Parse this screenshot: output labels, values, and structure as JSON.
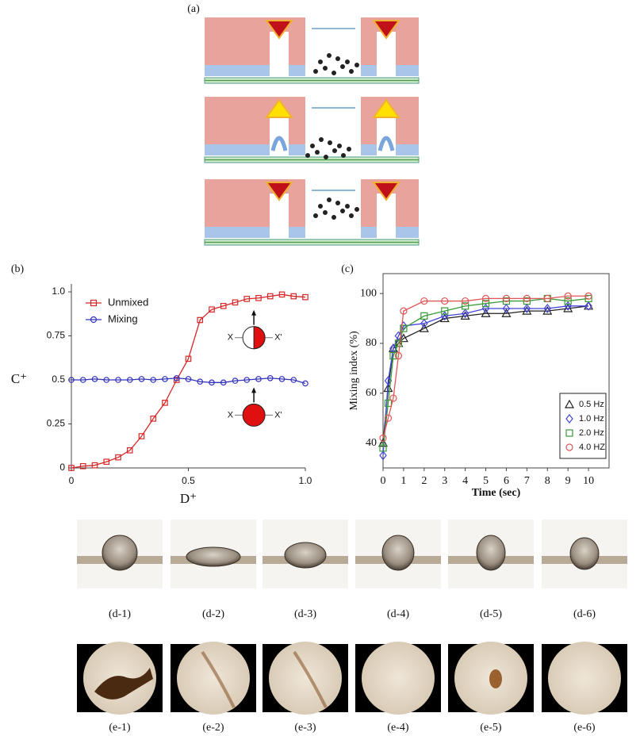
{
  "panel_labels": {
    "a": "(a)",
    "b": "(b)",
    "c": "(c)"
  },
  "chart_data": [
    {
      "type": "line",
      "x_label": "D⁺",
      "y_label": "C⁺",
      "x": [
        0,
        0.05,
        0.1,
        0.15,
        0.2,
        0.25,
        0.3,
        0.35,
        0.4,
        0.45,
        0.5,
        0.55,
        0.6,
        0.65,
        0.7,
        0.75,
        0.8,
        0.85,
        0.9,
        0.95,
        1
      ],
      "series": [
        {
          "name": "Unmixed",
          "color": "#d62728",
          "marker": "square",
          "values": [
            0,
            0.01,
            0.015,
            0.035,
            0.06,
            0.1,
            0.18,
            0.28,
            0.37,
            0.5,
            0.62,
            0.84,
            0.9,
            0.92,
            0.94,
            0.96,
            0.965,
            0.975,
            0.985,
            0.975,
            0.97
          ]
        },
        {
          "name": "Mixing",
          "color": "#3333bb",
          "marker": "circle",
          "values": [
            0.5,
            0.5,
            0.505,
            0.5,
            0.5,
            0.5,
            0.505,
            0.5,
            0.505,
            0.51,
            0.505,
            0.49,
            0.485,
            0.485,
            0.495,
            0.5,
            0.505,
            0.51,
            0.505,
            0.5,
            0.48
          ]
        }
      ],
      "xlim": [
        0,
        1
      ],
      "ylim": [
        0,
        1
      ],
      "xticks": [
        0,
        0.5,
        {
          "value": 1,
          "label": "1.0"
        }
      ],
      "yticks": [
        0,
        0.25,
        0.5,
        0.75,
        {
          "value": 1,
          "label": "1.0"
        }
      ],
      "legend": "upper left",
      "insets": [
        {
          "left": "X",
          "right": "X'"
        },
        {
          "left": "X",
          "right": "X'"
        }
      ]
    },
    {
      "type": "line",
      "x_label": "Time (sec)",
      "y_label": "Mixing index (%)",
      "x": [
        0,
        0.25,
        0.5,
        0.75,
        1,
        2,
        3,
        4,
        5,
        6,
        7,
        8,
        9,
        10
      ],
      "series": [
        {
          "name": "0.5 Hz",
          "color": "#222222",
          "marker": "triangle",
          "values": [
            40,
            62,
            78,
            80,
            82,
            86,
            90,
            91,
            92,
            92,
            93,
            93,
            94,
            95
          ]
        },
        {
          "name": "1.0 Hz",
          "color": "#4444dd",
          "marker": "diamond",
          "values": [
            35,
            65,
            78,
            83,
            87,
            88,
            91,
            92,
            94,
            94,
            94,
            94,
            95,
            95
          ]
        },
        {
          "name": "2.0 Hz",
          "color": "#3a9a3a",
          "marker": "square",
          "values": [
            38,
            56,
            75,
            80,
            86,
            91,
            93,
            95,
            96,
            97,
            97,
            98,
            97,
            98
          ]
        },
        {
          "name": "4.0 HZ",
          "color": "#e05555",
          "marker": "circle",
          "values": [
            42,
            50,
            58,
            75,
            93,
            97,
            97,
            97,
            98,
            98,
            98,
            98,
            99,
            99
          ]
        }
      ],
      "xlim": [
        0,
        11
      ],
      "ylim": [
        30,
        108
      ],
      "xticks": [
        0,
        1,
        2,
        3,
        4,
        5,
        6,
        7,
        8,
        9,
        10
      ],
      "yticks": [
        40,
        60,
        80,
        100
      ],
      "legend": "lower right"
    }
  ],
  "droplet_labels": [
    "(d-1)",
    "(d-2)",
    "(d-3)",
    "(d-4)",
    "(d-5)",
    "(d-6)"
  ],
  "stain_labels": [
    "(e-1)",
    "(e-2)",
    "(e-3)",
    "(e-4)",
    "(e-5)",
    "(e-6)"
  ]
}
